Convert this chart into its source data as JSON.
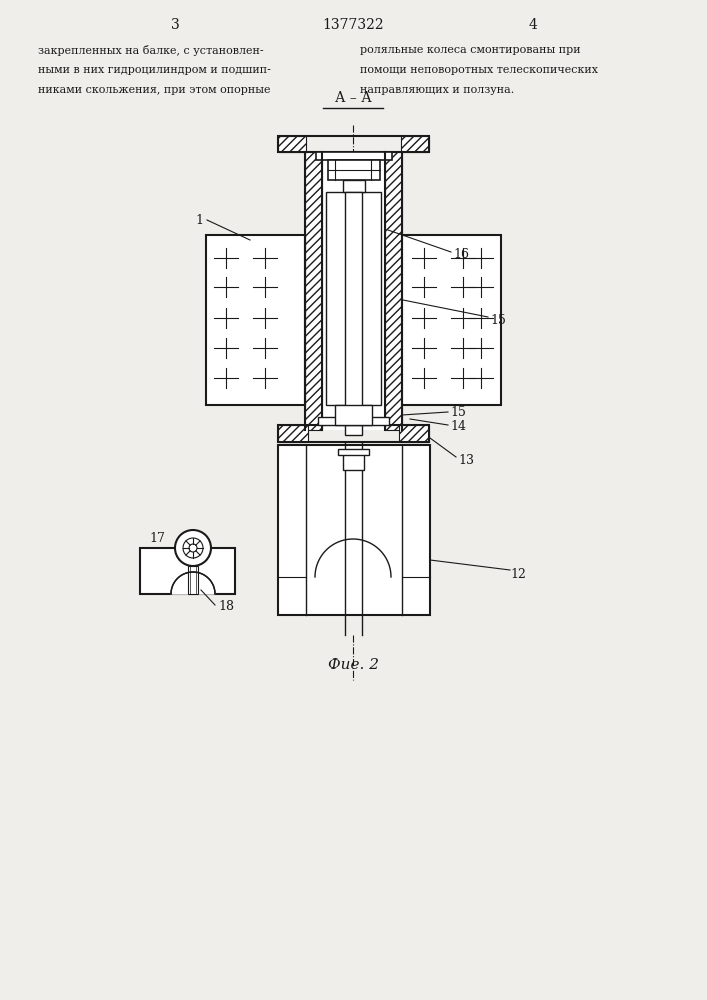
{
  "page_number_left": "3",
  "page_number_center": "1377322",
  "page_number_right": "4",
  "text_left": [
    "закрепленных на балке, с установлен-",
    "ными в них гидроцилиндром и подшип-",
    "никами скольжения, при этом опорные"
  ],
  "text_right": [
    "роляльные колеса смонтированы при",
    "помощи неповоротных телескопических",
    "направляющих и ползуна."
  ],
  "fig_label": "Фие. 2",
  "section_label": "А – А",
  "bg_color": "#f0eeea",
  "line_color": "#1a1a1a"
}
